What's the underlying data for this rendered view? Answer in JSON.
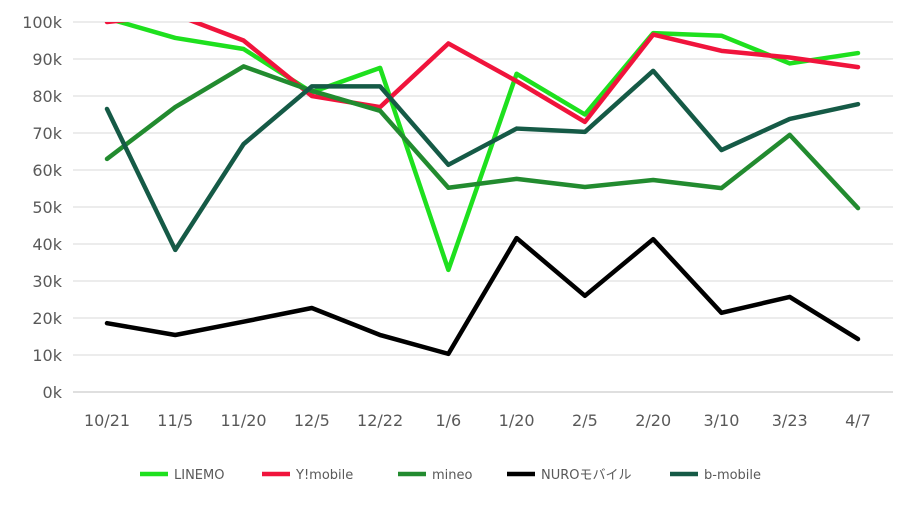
{
  "chart_data": {
    "type": "line",
    "title": "",
    "xlabel": "",
    "ylabel": "",
    "categories": [
      "10/21",
      "11/5",
      "11/20",
      "12/5",
      "12/22",
      "1/6",
      "1/20",
      "2/5",
      "2/20",
      "3/10",
      "3/23",
      "4/7"
    ],
    "yticks": [
      "0k",
      "10k",
      "20k",
      "30k",
      "40k",
      "50k",
      "60k",
      "70k",
      "80k",
      "90k",
      "100k"
    ],
    "ylim": [
      0,
      100000
    ],
    "grid": true,
    "legend": "bottom",
    "series": [
      {
        "name": "LINEMO",
        "color": "#1EE01E",
        "values": [
          101000,
          95700,
          92700,
          81000,
          87600,
          33000,
          86000,
          75000,
          97000,
          96300,
          88800,
          91600
        ]
      },
      {
        "name": "Y!mobile",
        "color": "#F0143C",
        "values": [
          100000,
          102000,
          95000,
          80000,
          77000,
          94200,
          84000,
          73000,
          96600,
          92200,
          90400,
          87800
        ]
      },
      {
        "name": "mineo",
        "color": "#228B2F",
        "values": [
          63000,
          77000,
          88000,
          81400,
          76000,
          55200,
          57600,
          55400,
          57300,
          55100,
          69500,
          49700
        ]
      },
      {
        "name": "NUROモバイル",
        "color": "#000000",
        "values": [
          18600,
          15400,
          19000,
          22700,
          15400,
          10300,
          41600,
          26000,
          41300,
          21400,
          25700,
          14300
        ]
      },
      {
        "name": "b-mobile",
        "color": "#155A46",
        "values": [
          76500,
          38400,
          67000,
          82600,
          82600,
          61400,
          71200,
          70300,
          86800,
          65400,
          73800,
          77800
        ]
      }
    ]
  }
}
